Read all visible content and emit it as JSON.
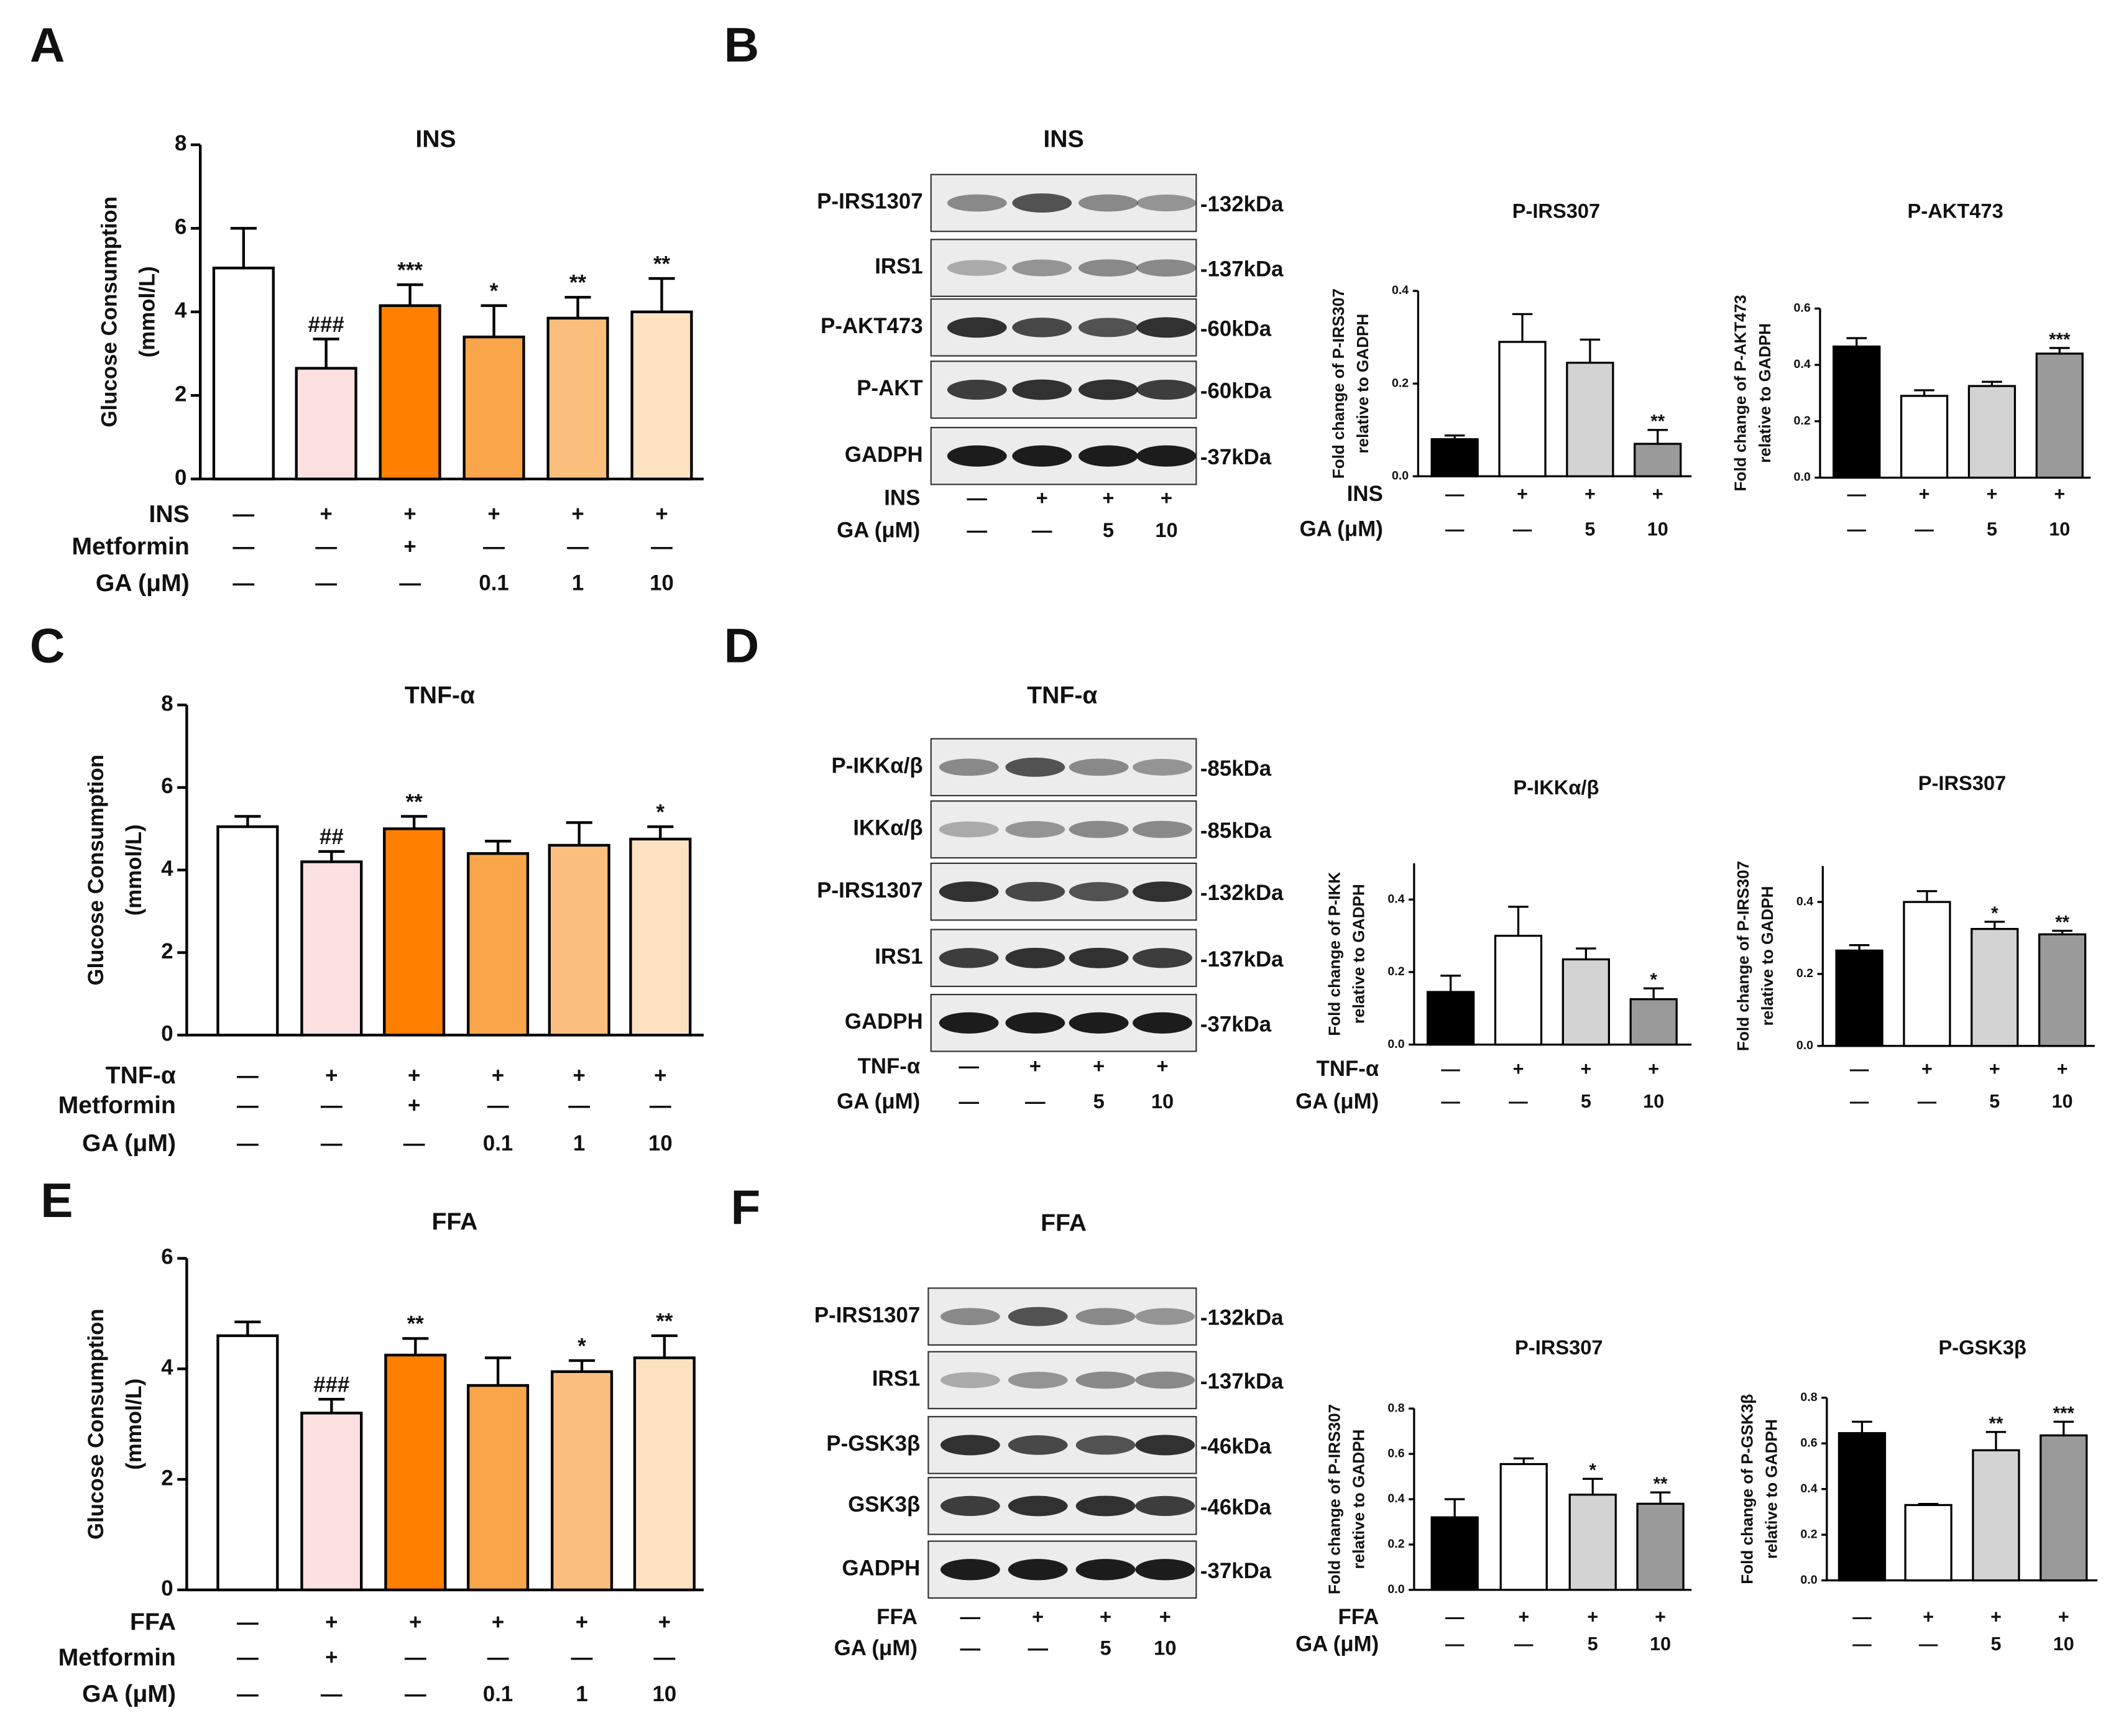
{
  "panel_letters": [
    "A",
    "B",
    "C",
    "D",
    "E",
    "F"
  ],
  "chart_data": [
    {
      "type": "bar",
      "title": "INS",
      "y_label": [
        "Glucose Consumption",
        "(mmol/L)"
      ],
      "ylim": [
        0,
        8
      ],
      "yticks": [
        0,
        2,
        4,
        6,
        8
      ],
      "values": [
        5.05,
        2.65,
        4.15,
        3.4,
        3.85,
        4.0
      ],
      "errors": [
        0.95,
        0.7,
        0.5,
        0.75,
        0.5,
        0.8
      ],
      "annotations": [
        null,
        "###",
        "***",
        "*",
        "**",
        "**"
      ],
      "colors": [
        "#ffffff",
        "#fde0e0",
        "#ff7f00",
        "#f9a64a",
        "#fbbf7d",
        "#fde2c2"
      ],
      "conditions": [
        {
          "name": "INS",
          "values": [
            "—",
            "+",
            "+",
            "+",
            "+",
            "+"
          ]
        },
        {
          "name": "Metformin",
          "values": [
            "—",
            "—",
            "+",
            "—",
            "—",
            "—"
          ]
        },
        {
          "name": "GA (μM)",
          "values": [
            "—",
            "—",
            "—",
            "0.1",
            "1",
            "10"
          ]
        }
      ]
    },
    {
      "type": "bar",
      "title": "P-IRS307",
      "y_label": [
        "Fold change of P-IRS307",
        "relative to GADPH"
      ],
      "ylim": [
        0,
        0.4
      ],
      "yticks": [
        {
          "value": 0,
          "label": "0.0"
        },
        0.2,
        0.4
      ],
      "values": [
        0.08,
        0.29,
        0.245,
        0.07
      ],
      "errors": [
        0.008,
        0.06,
        0.05,
        0.03
      ],
      "annotations": [
        null,
        null,
        null,
        "**"
      ],
      "colors": [
        "#000000",
        "#ffffff",
        "#d3d3d3",
        "#9a9a9a"
      ],
      "conditions": [
        {
          "name": "INS",
          "values": [
            "—",
            "+",
            "+",
            "+"
          ]
        },
        {
          "name": "GA (μM)",
          "values": [
            "—",
            "—",
            "5",
            "10"
          ]
        }
      ]
    },
    {
      "type": "bar",
      "title": "P-AKT473",
      "y_label": [
        "Fold change of P-AKT473",
        "relative to GADPH"
      ],
      "ylim": [
        0,
        0.6
      ],
      "yticks": [
        {
          "value": 0,
          "label": "0.0"
        },
        0.2,
        0.4,
        0.6
      ],
      "values": [
        0.465,
        0.29,
        0.325,
        0.44
      ],
      "errors": [
        0.03,
        0.02,
        0.015,
        0.02
      ],
      "annotations": [
        null,
        null,
        null,
        "***"
      ],
      "colors": [
        "#000000",
        "#ffffff",
        "#d3d3d3",
        "#9a9a9a"
      ],
      "conditions": [
        {
          "values": [
            "—",
            "+",
            "+",
            "+"
          ]
        },
        {
          "values": [
            "—",
            "—",
            "5",
            "10"
          ]
        }
      ]
    },
    {
      "type": "bar",
      "title": "TNF-α",
      "y_label": [
        "Glucose Consumption",
        "(mmol/L)"
      ],
      "ylim": [
        0,
        8
      ],
      "yticks": [
        0,
        2,
        4,
        6,
        8
      ],
      "values": [
        5.05,
        4.2,
        5.0,
        4.4,
        4.6,
        4.75
      ],
      "errors": [
        0.25,
        0.25,
        0.3,
        0.3,
        0.55,
        0.3
      ],
      "annotations": [
        null,
        "##",
        "**",
        null,
        null,
        "*"
      ],
      "colors": [
        "#ffffff",
        "#fde0e0",
        "#ff7f00",
        "#f9a64a",
        "#fbbf7d",
        "#fde2c2"
      ],
      "conditions": [
        {
          "name": "TNF-α",
          "values": [
            "—",
            "+",
            "+",
            "+",
            "+",
            "+"
          ]
        },
        {
          "name": "Metformin",
          "values": [
            "—",
            "—",
            "+",
            "—",
            "—",
            "—"
          ]
        },
        {
          "name": "GA (μM)",
          "values": [
            "—",
            "—",
            "—",
            "0.1",
            "1",
            "10"
          ]
        }
      ]
    },
    {
      "type": "bar",
      "title": "P-IKKα/β",
      "y_label": [
        "Fold change of P-IKK",
        "relative to GADPH"
      ],
      "ylim": [
        0,
        0.5
      ],
      "yticks": [
        {
          "value": 0,
          "label": "0.0"
        },
        0.2,
        0.4
      ],
      "values": [
        0.145,
        0.3,
        0.235,
        0.125
      ],
      "errors": [
        0.045,
        0.08,
        0.03,
        0.03
      ],
      "annotations": [
        null,
        null,
        null,
        "*"
      ],
      "colors": [
        "#000000",
        "#ffffff",
        "#d3d3d3",
        "#9a9a9a"
      ],
      "conditions": [
        {
          "name": "TNF-α",
          "values": [
            "—",
            "+",
            "+",
            "+"
          ]
        },
        {
          "name": "GA (μM)",
          "values": [
            "—",
            "—",
            "5",
            "10"
          ]
        }
      ]
    },
    {
      "type": "bar",
      "title": "P-IRS307",
      "y_label": [
        "Fold change of P-IRS307",
        "relative to GADPH"
      ],
      "ylim": [
        0,
        0.5
      ],
      "yticks": [
        {
          "value": 0,
          "label": "0.0"
        },
        0.2,
        0.4
      ],
      "values": [
        0.265,
        0.4,
        0.325,
        0.31
      ],
      "errors": [
        0.015,
        0.03,
        0.02,
        0.01
      ],
      "annotations": [
        null,
        null,
        "*",
        "**"
      ],
      "colors": [
        "#000000",
        "#ffffff",
        "#d3d3d3",
        "#9a9a9a"
      ],
      "conditions": [
        {
          "values": [
            "—",
            "+",
            "+",
            "+"
          ]
        },
        {
          "values": [
            "—",
            "—",
            "5",
            "10"
          ]
        }
      ]
    },
    {
      "type": "bar",
      "title": "FFA",
      "y_label": [
        "Glucose Consumption",
        "(mmol/L)"
      ],
      "ylim": [
        0,
        6
      ],
      "yticks": [
        0,
        2,
        4,
        6
      ],
      "values": [
        4.6,
        3.2,
        4.25,
        3.7,
        3.95,
        4.2
      ],
      "errors": [
        0.25,
        0.25,
        0.3,
        0.5,
        0.2,
        0.4
      ],
      "annotations": [
        null,
        "###",
        "**",
        null,
        "*",
        "**"
      ],
      "colors": [
        "#ffffff",
        "#fde0e0",
        "#ff7f00",
        "#f9a64a",
        "#fbbf7d",
        "#fde2c2"
      ],
      "conditions": [
        {
          "name": "FFA",
          "values": [
            "—",
            "+",
            "+",
            "+",
            "+",
            "+"
          ]
        },
        {
          "name": "Metformin",
          "values": [
            "—",
            "+",
            "—",
            "—",
            "—",
            "—"
          ]
        },
        {
          "name": "GA (μM)",
          "values": [
            "—",
            "—",
            "—",
            "0.1",
            "1",
            "10"
          ]
        }
      ]
    },
    {
      "type": "bar",
      "title": "P-IRS307",
      "y_label": [
        "Fold change of P-IRS307",
        "relative to GADPH"
      ],
      "ylim": [
        0,
        0.8
      ],
      "yticks": [
        {
          "value": 0,
          "label": "0.0"
        },
        0.2,
        0.4,
        0.6,
        0.8
      ],
      "values": [
        0.32,
        0.555,
        0.42,
        0.38
      ],
      "errors": [
        0.08,
        0.025,
        0.07,
        0.05
      ],
      "annotations": [
        null,
        null,
        "*",
        "**"
      ],
      "colors": [
        "#000000",
        "#ffffff",
        "#d3d3d3",
        "#9a9a9a"
      ],
      "conditions": [
        {
          "name": "FFA",
          "values": [
            "—",
            "+",
            "+",
            "+"
          ]
        },
        {
          "name": "GA (μM)",
          "values": [
            "—",
            "—",
            "5",
            "10"
          ]
        }
      ]
    },
    {
      "type": "bar",
      "title": "P-GSK3β",
      "y_label": [
        "Fold change of P-GSK3β",
        "relative to GADPH"
      ],
      "ylim": [
        0,
        0.8
      ],
      "yticks": [
        {
          "value": 0,
          "label": "0.0"
        },
        0.2,
        0.4,
        0.6,
        0.8
      ],
      "values": [
        0.645,
        0.33,
        0.57,
        0.635
      ],
      "errors": [
        0.05,
        0.005,
        0.08,
        0.06
      ],
      "annotations": [
        null,
        null,
        "**",
        "***"
      ],
      "colors": [
        "#000000",
        "#ffffff",
        "#d3d3d3",
        "#9a9a9a"
      ],
      "conditions": [
        {
          "values": [
            "—",
            "+",
            "+",
            "+"
          ]
        },
        {
          "values": [
            "—",
            "—",
            "5",
            "10"
          ]
        }
      ]
    }
  ],
  "blots": [
    {
      "title": "INS",
      "rows": [
        {
          "label": "P-IRS1307",
          "size": "-132kDa"
        },
        {
          "label": "IRS1",
          "size": "-137kDa"
        },
        {
          "label": "P-AKT473",
          "size": "-60kDa"
        },
        {
          "label": "P-AKT",
          "size": "-60kDa"
        },
        {
          "label": "GADPH",
          "size": "-37kDa"
        }
      ],
      "conditions": [
        {
          "name": "INS",
          "values": [
            "—",
            "+",
            "+",
            "+"
          ]
        },
        {
          "name": "GA (μM)",
          "values": [
            "—",
            "—",
            "5",
            "10"
          ]
        }
      ]
    },
    {
      "title": "TNF-α",
      "rows": [
        {
          "label": "P-IKKα/β",
          "size": "-85kDa"
        },
        {
          "label": "IKKα/β",
          "size": "-85kDa"
        },
        {
          "label": "P-IRS1307",
          "size": "-132kDa"
        },
        {
          "label": "IRS1",
          "size": "-137kDa"
        },
        {
          "label": "GADPH",
          "size": "-37kDa"
        }
      ],
      "conditions": [
        {
          "name": "TNF-α",
          "values": [
            "—",
            "+",
            "+",
            "+"
          ]
        },
        {
          "name": "GA (μM)",
          "values": [
            "—",
            "—",
            "5",
            "10"
          ]
        }
      ]
    },
    {
      "title": "FFA",
      "rows": [
        {
          "label": "P-IRS1307",
          "size": "-132kDa"
        },
        {
          "label": "IRS1",
          "size": "-137kDa"
        },
        {
          "label": "P-GSK3β",
          "size": "-46kDa"
        },
        {
          "label": "GSK3β",
          "size": "-46kDa"
        },
        {
          "label": "GADPH",
          "size": "-37kDa"
        }
      ],
      "conditions": [
        {
          "name": "FFA",
          "values": [
            "—",
            "+",
            "+",
            "+"
          ]
        },
        {
          "name": "GA (μM)",
          "values": [
            "—",
            "—",
            "5",
            "10"
          ]
        }
      ]
    }
  ]
}
